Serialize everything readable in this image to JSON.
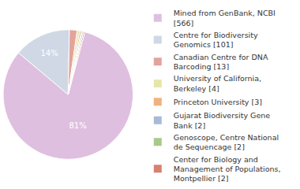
{
  "chart_data": {
    "type": "pie",
    "categories": [
      "Mined from GenBank, NCBI [566]",
      "Centre for Biodiversity Genomics [101]",
      "Canadian Centre for DNA Barcoding [13]",
      "University of California, Berkeley [4]",
      "Princeton University [3]",
      "Gujarat Biodiversity Gene Bank [2]",
      "Genoscope, Centre National de Sequencage [2]",
      "Center for Biology and Management of Populations, Montpellier [2]"
    ],
    "values": [
      81,
      14,
      1.9,
      0.6,
      0.4,
      0.3,
      0.3,
      0.3
    ],
    "value_labels": [
      "81%",
      "14%",
      null,
      null,
      null,
      null,
      null,
      null
    ],
    "colors": [
      "#dfbfdf",
      "#cfd8e4",
      "#e3a39c",
      "#e6e6aa",
      "#f0b27c",
      "#a9bad8",
      "#a9c98a",
      "#d98070"
    ],
    "data_labels": true
  }
}
